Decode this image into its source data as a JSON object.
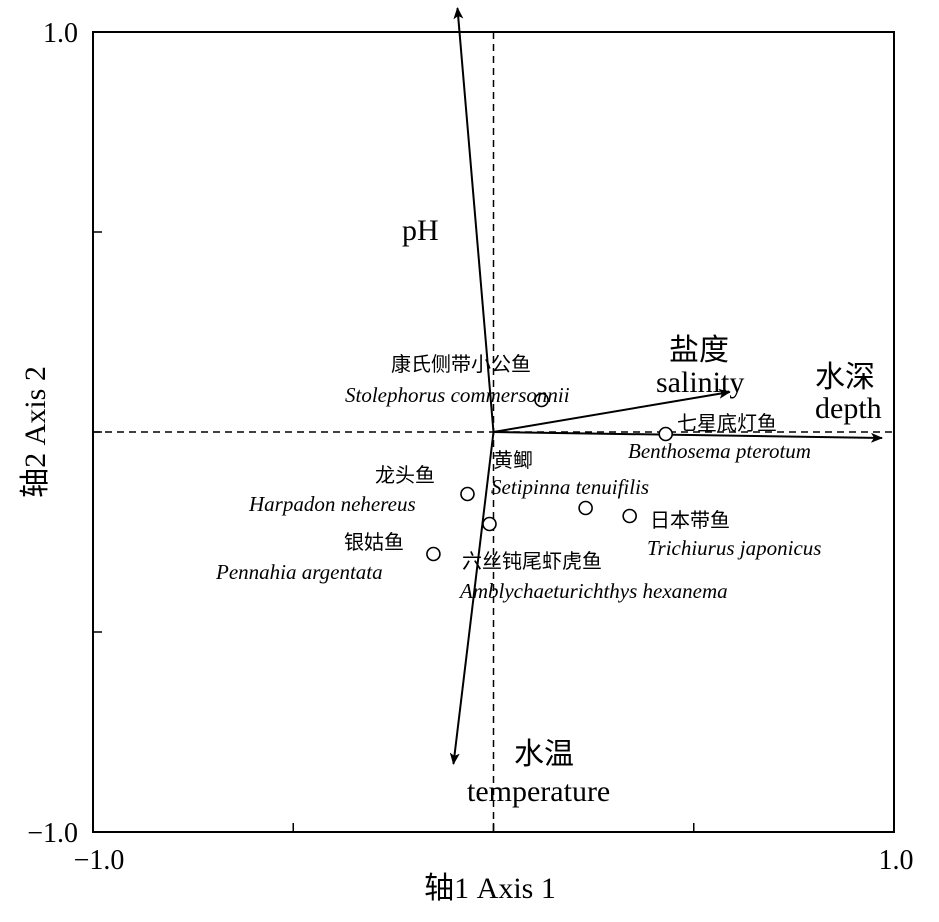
{
  "chart_data": {
    "type": "scatter",
    "subtype": "rda-biplot",
    "title": "",
    "xlabel": "轴1 Axis 1",
    "ylabel": "轴2 Axis 2",
    "xlim": [
      -1.0,
      1.0
    ],
    "ylim": [
      -1.0,
      1.0
    ],
    "x_tick_labels": [
      "−1.0",
      "1.0"
    ],
    "y_tick_labels": [
      "1.0",
      "−1.0"
    ],
    "grid": false,
    "reference_lines": "dashed lines at x=0 and y=0",
    "env_vectors": [
      {
        "name": "水深 depth",
        "cn": "水深",
        "en": "depth",
        "x": 0.97,
        "y": -0.015
      },
      {
        "name": "盐度 salinity",
        "cn": "盐度",
        "en": "salinity",
        "x": 0.59,
        "y": 0.1
      },
      {
        "name": "pH",
        "cn": "",
        "en": "pH",
        "x": -0.09,
        "y": 1.06
      },
      {
        "name": "水温 temperature",
        "cn": "水温",
        "en": "temperature",
        "x": -0.1,
        "y": -0.83
      }
    ],
    "species": [
      {
        "cn": "康氏侧带小公鱼",
        "latin": "Stolephorus commersonnii",
        "x": 0.12,
        "y": 0.08
      },
      {
        "cn": "七星底灯鱼",
        "latin": "Benthosema pterotum",
        "x": 0.43,
        "y": -0.005
      },
      {
        "cn": "龙头鱼",
        "latin": "Harpadon nehereus",
        "x": -0.065,
        "y": -0.155
      },
      {
        "cn": "黄鲫",
        "latin": "Setipinna tenuifilis",
        "x": 0.23,
        "y": -0.19
      },
      {
        "cn": "日本带鱼",
        "latin": "Trichiurus japonicus",
        "x": 0.34,
        "y": -0.21
      },
      {
        "cn": "六丝钝尾虾虎鱼",
        "latin": "Amblychaeturichthys hexanema",
        "x": -0.01,
        "y": -0.23
      },
      {
        "cn": "银姑鱼",
        "latin": "Pennahia argentata",
        "x": -0.15,
        "y": -0.305
      }
    ]
  }
}
